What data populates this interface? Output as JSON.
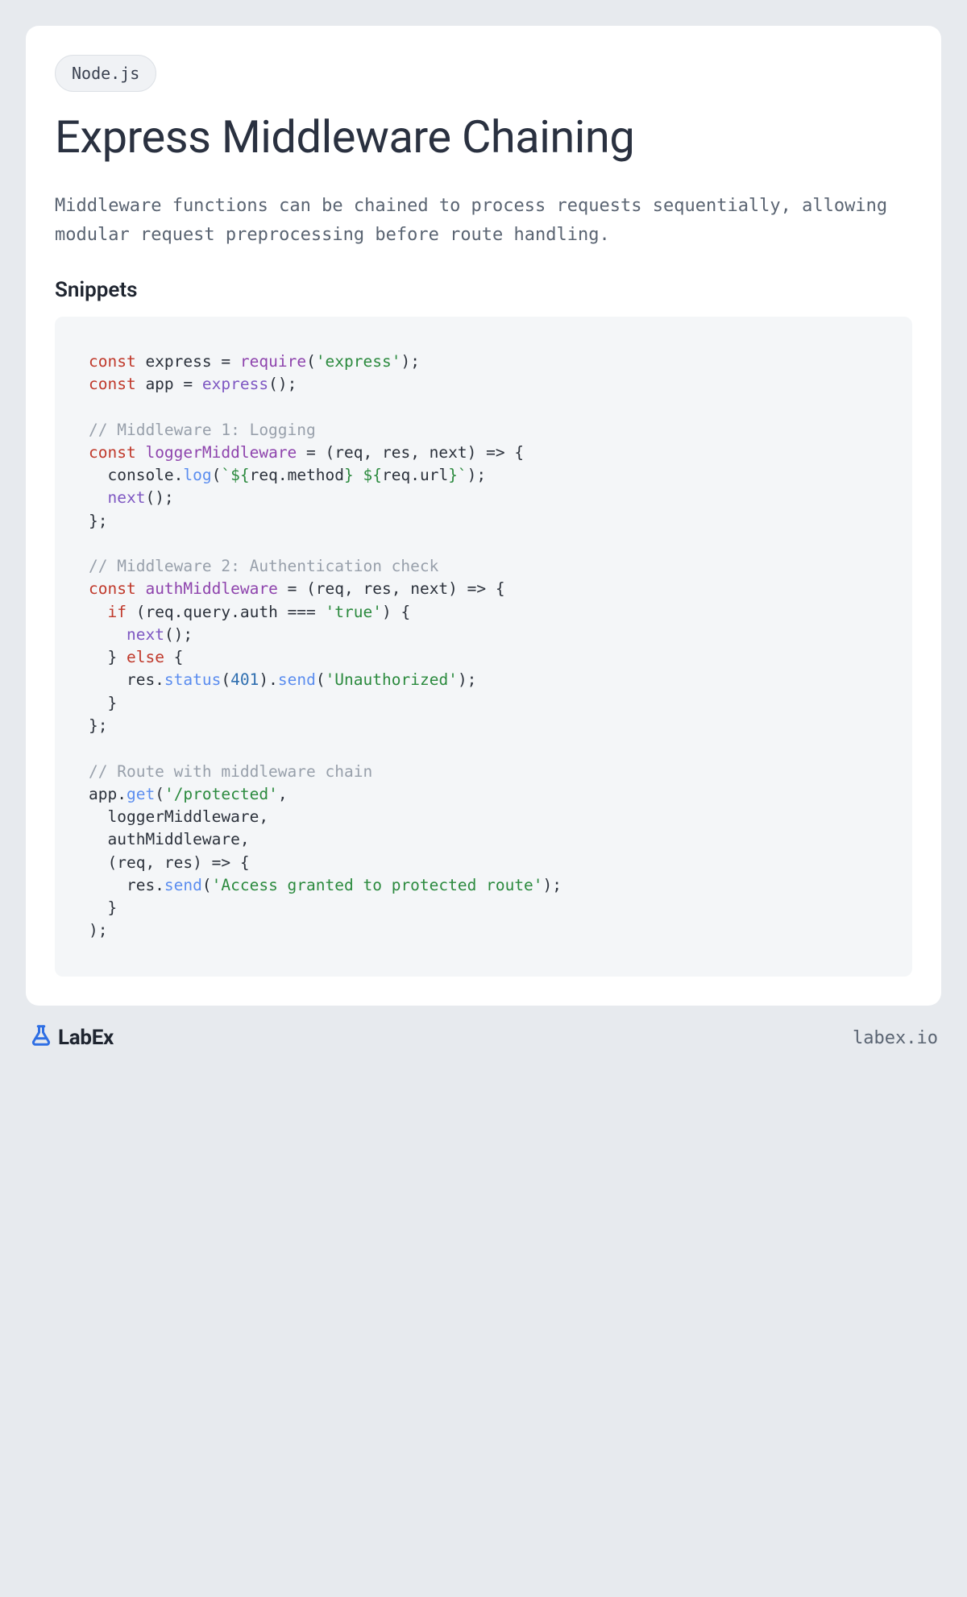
{
  "badge": "Node.js",
  "title": "Express Middleware Chaining",
  "description": "Middleware functions can be chained to process requests sequentially, allowing modular request preprocessing before route handling.",
  "section_heading": "Snippets",
  "code_tokens": [
    [
      [
        "kw",
        "const"
      ],
      [
        "def",
        " express "
      ],
      [
        "def",
        "="
      ],
      [
        "def",
        " "
      ],
      [
        "fn",
        "require"
      ],
      [
        "def",
        "("
      ],
      [
        "str",
        "'express'"
      ],
      [
        "def",
        ");"
      ]
    ],
    [
      [
        "kw",
        "const"
      ],
      [
        "def",
        " app "
      ],
      [
        "def",
        "="
      ],
      [
        "def",
        " "
      ],
      [
        "id",
        "express"
      ],
      [
        "def",
        "();"
      ]
    ],
    [],
    [
      [
        "cmt",
        "// Middleware 1: Logging"
      ]
    ],
    [
      [
        "kw",
        "const"
      ],
      [
        "def",
        " "
      ],
      [
        "fn",
        "loggerMiddleware"
      ],
      [
        "def",
        " "
      ],
      [
        "def",
        "="
      ],
      [
        "def",
        " (req, res, next) "
      ],
      [
        "def",
        "=>"
      ],
      [
        "def",
        " {"
      ]
    ],
    [
      [
        "def",
        "  console."
      ],
      [
        "call",
        "log"
      ],
      [
        "def",
        "("
      ],
      [
        "str",
        "`${"
      ],
      [
        "def",
        "req.method"
      ],
      [
        "str",
        "} ${"
      ],
      [
        "def",
        "req.url"
      ],
      [
        "str",
        "}`"
      ],
      [
        "def",
        ");"
      ]
    ],
    [
      [
        "def",
        "  "
      ],
      [
        "id",
        "next"
      ],
      [
        "def",
        "();"
      ]
    ],
    [
      [
        "def",
        "};"
      ]
    ],
    [],
    [
      [
        "cmt",
        "// Middleware 2: Authentication check"
      ]
    ],
    [
      [
        "kw",
        "const"
      ],
      [
        "def",
        " "
      ],
      [
        "fn",
        "authMiddleware"
      ],
      [
        "def",
        " "
      ],
      [
        "def",
        "="
      ],
      [
        "def",
        " (req, res, next) "
      ],
      [
        "def",
        "=>"
      ],
      [
        "def",
        " {"
      ]
    ],
    [
      [
        "def",
        "  "
      ],
      [
        "kw",
        "if"
      ],
      [
        "def",
        " (req.query.auth "
      ],
      [
        "def",
        "==="
      ],
      [
        "def",
        " "
      ],
      [
        "str",
        "'true'"
      ],
      [
        "def",
        ") {"
      ]
    ],
    [
      [
        "def",
        "    "
      ],
      [
        "id",
        "next"
      ],
      [
        "def",
        "();"
      ]
    ],
    [
      [
        "def",
        "  } "
      ],
      [
        "kw",
        "else"
      ],
      [
        "def",
        " {"
      ]
    ],
    [
      [
        "def",
        "    res."
      ],
      [
        "call",
        "status"
      ],
      [
        "def",
        "("
      ],
      [
        "num",
        "401"
      ],
      [
        "def",
        ")."
      ],
      [
        "call",
        "send"
      ],
      [
        "def",
        "("
      ],
      [
        "str",
        "'Unauthorized'"
      ],
      [
        "def",
        ");"
      ]
    ],
    [
      [
        "def",
        "  }"
      ]
    ],
    [
      [
        "def",
        "};"
      ]
    ],
    [],
    [
      [
        "cmt",
        "// Route with middleware chain"
      ]
    ],
    [
      [
        "def",
        "app."
      ],
      [
        "call",
        "get"
      ],
      [
        "def",
        "("
      ],
      [
        "str",
        "'/protected'"
      ],
      [
        "def",
        ","
      ]
    ],
    [
      [
        "def",
        "  loggerMiddleware,"
      ]
    ],
    [
      [
        "def",
        "  authMiddleware,"
      ]
    ],
    [
      [
        "def",
        "  (req, res) "
      ],
      [
        "def",
        "=>"
      ],
      [
        "def",
        " {"
      ]
    ],
    [
      [
        "def",
        "    res."
      ],
      [
        "call",
        "send"
      ],
      [
        "def",
        "("
      ],
      [
        "str",
        "'Access granted to protected route'"
      ],
      [
        "def",
        ");"
      ]
    ],
    [
      [
        "def",
        "  }"
      ]
    ],
    [
      [
        "def",
        ");"
      ]
    ]
  ],
  "brand": "LabEx",
  "site": "labex.io",
  "colors": {
    "page_bg": "#e7eaee",
    "card_bg": "#ffffff",
    "badge_bg": "#f0f2f5",
    "badge_border": "#dde1e6",
    "code_bg": "#f4f6f8",
    "text_primary": "#2a3140",
    "text_muted": "#5a6472",
    "kw": "#c0392b",
    "fn": "#8e44ad",
    "id": "#7e57c2",
    "call": "#5b8def",
    "str": "#2b8a3e",
    "num": "#2f6fb0",
    "cmt": "#98a0ab",
    "brand_blue": "#2f6fe4"
  }
}
